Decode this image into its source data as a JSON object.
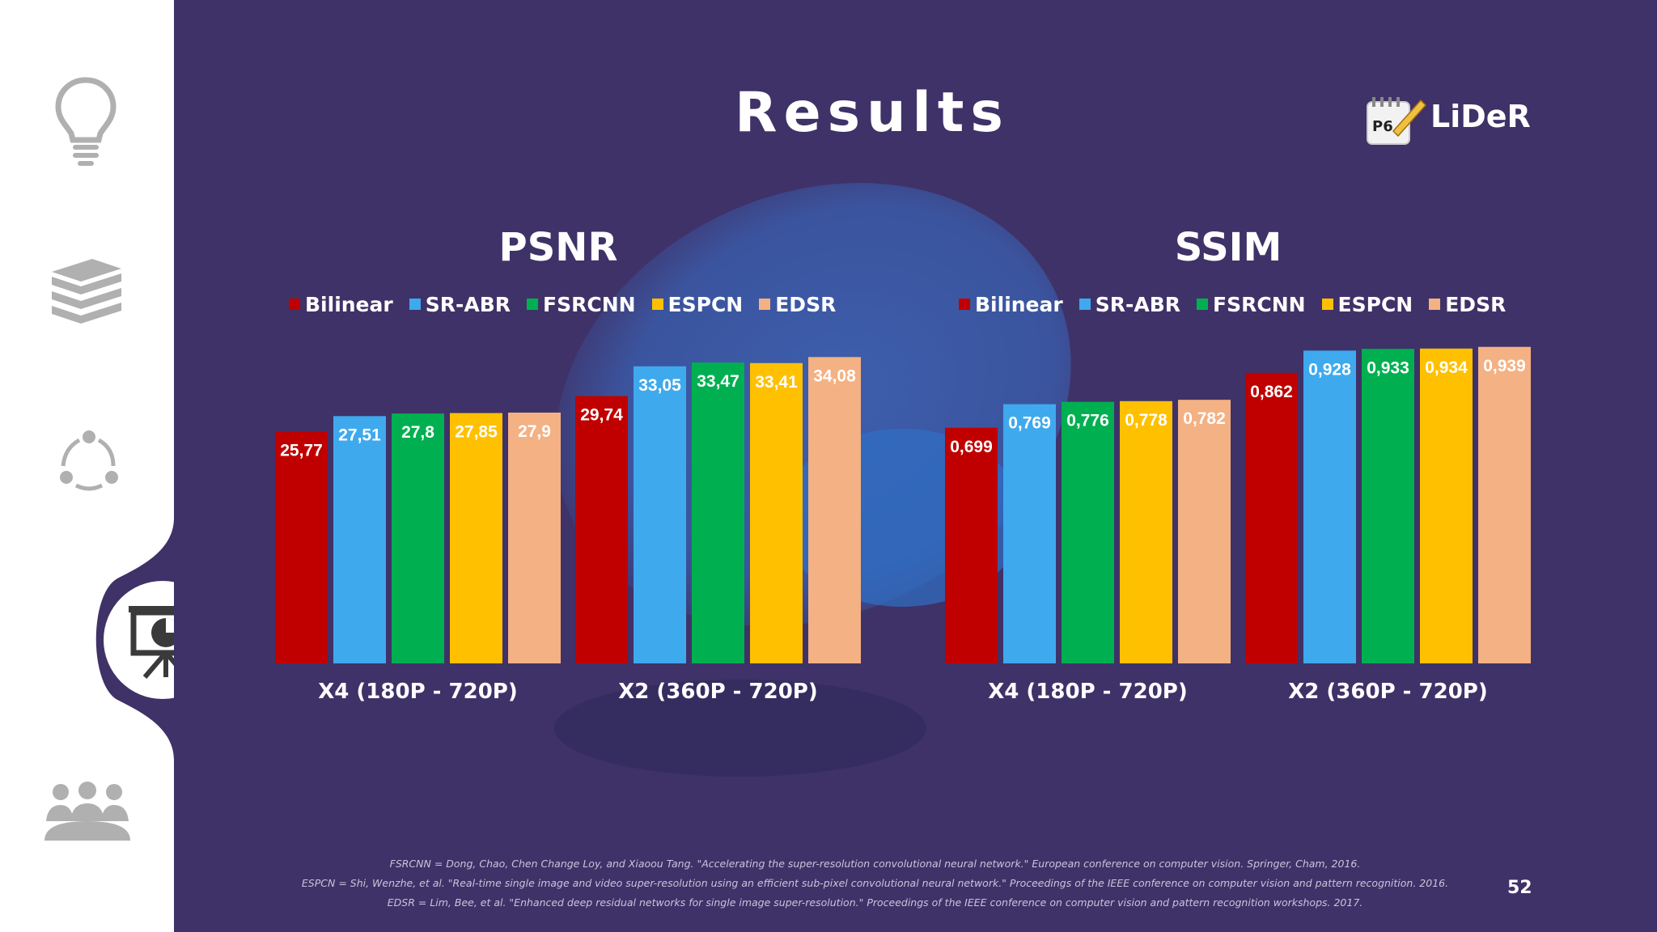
{
  "slide": {
    "title": "Results",
    "logo_text": "LiDeR",
    "logo_badge": "P6",
    "page_number": "52"
  },
  "sidebar": {
    "icons": [
      "lightbulb-icon",
      "books-icon",
      "cycle-icon",
      "presentation-chart-icon",
      "group-icon"
    ],
    "active": "presentation-chart-icon"
  },
  "colors": {
    "background": "#3f3268",
    "Bilinear": "#c00000",
    "SR-ABR": "#3fa9ee",
    "FSRCNN": "#00b050",
    "ESPCN": "#ffc000",
    "EDSR": "#f4b183"
  },
  "chart_data": [
    {
      "type": "bar",
      "title": "PSNR",
      "categories": [
        "X4 (180P - 720P)",
        "X2 (360P - 720P)"
      ],
      "series": [
        {
          "name": "Bilinear",
          "values": [
            25.77,
            29.74
          ],
          "labels": [
            "25,77",
            "29,74"
          ]
        },
        {
          "name": "SR-ABR",
          "values": [
            27.51,
            33.05
          ],
          "labels": [
            "27,51",
            "33,05"
          ]
        },
        {
          "name": "FSRCNN",
          "values": [
            27.8,
            33.47
          ],
          "labels": [
            "27,8",
            "33,47"
          ]
        },
        {
          "name": "ESPCN",
          "values": [
            27.85,
            33.41
          ],
          "labels": [
            "27,85",
            "33,41"
          ]
        },
        {
          "name": "EDSR",
          "values": [
            27.9,
            34.08
          ],
          "labels": [
            "27,9",
            "34,08"
          ]
        }
      ],
      "ylim": [
        0,
        36
      ],
      "legend": "top",
      "grid": false
    },
    {
      "type": "bar",
      "title": "SSIM",
      "categories": [
        "X4 (180P - 720P)",
        "X2 (360P - 720P)"
      ],
      "series": [
        {
          "name": "Bilinear",
          "values": [
            0.699,
            0.862
          ],
          "labels": [
            "0,699",
            "0,862"
          ]
        },
        {
          "name": "SR-ABR",
          "values": [
            0.769,
            0.928
          ],
          "labels": [
            "0,769",
            "0,928"
          ]
        },
        {
          "name": "FSRCNN",
          "values": [
            0.776,
            0.933
          ],
          "labels": [
            "0,776",
            "0,933"
          ]
        },
        {
          "name": "ESPCN",
          "values": [
            0.778,
            0.934
          ],
          "labels": [
            "0,778",
            "0,934"
          ]
        },
        {
          "name": "EDSR",
          "values": [
            0.782,
            0.939
          ],
          "labels": [
            "0,782",
            "0,939"
          ]
        }
      ],
      "ylim": [
        0,
        0.96
      ],
      "legend": "top",
      "grid": false
    }
  ],
  "references": [
    "FSRCNN = Dong, Chao, Chen Change Loy, and Xiaoou Tang. \"Accelerating the super-resolution convolutional neural network.\" European conference on computer vision. Springer, Cham, 2016.",
    "ESPCN = Shi, Wenzhe, et al. \"Real-time single image and video super-resolution using an efficient sub-pixel convolutional neural network.\" Proceedings of the IEEE conference on computer vision and pattern recognition. 2016.",
    "EDSR = Lim, Bee, et al. \"Enhanced deep residual networks for single image super-resolution.\" Proceedings of the IEEE conference on computer vision and pattern recognition workshops. 2017."
  ]
}
